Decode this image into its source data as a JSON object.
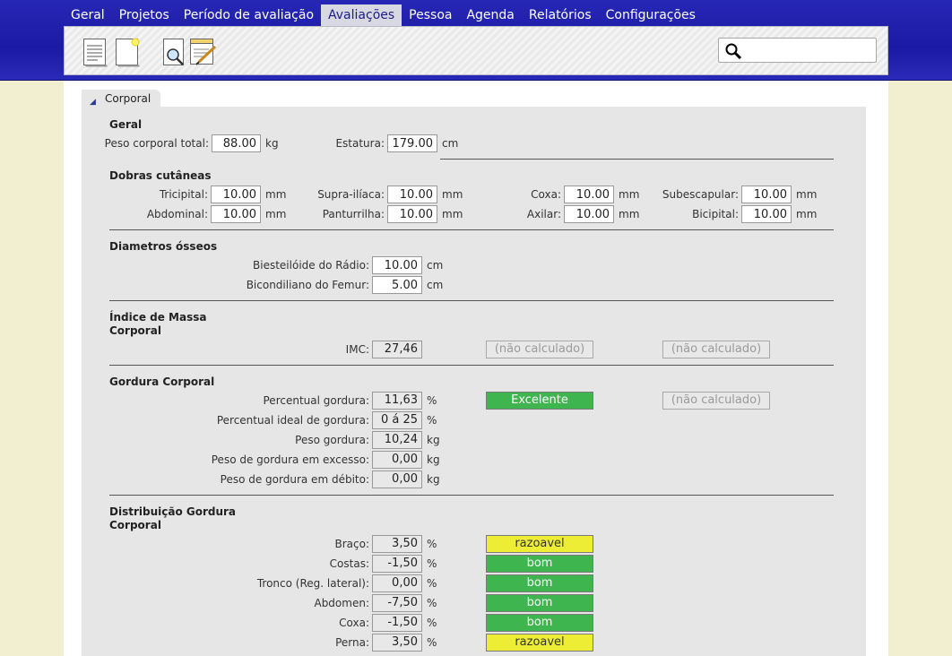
{
  "nav": [
    "Geral",
    "Projetos",
    "Período de avaliação",
    "Avaliações",
    "Pessoa",
    "Agenda",
    "Relatórios",
    "Configurações"
  ],
  "toolbar": {
    "icons": [
      "document-icon",
      "new-document-icon",
      "search-document-icon",
      "edit-notepad-icon"
    ],
    "search_placeholder": ""
  },
  "tab_label": "Corporal",
  "geral": {
    "title": "Geral",
    "peso_label": "Peso corporal total:",
    "peso_value": "88.00",
    "peso_unit": "kg",
    "estatura_label": "Estatura:",
    "estatura_value": "179.00",
    "estatura_unit": "cm"
  },
  "dobras": {
    "title": "Dobras cutâneas",
    "unit": "mm",
    "fields": [
      {
        "label": "Tricipital:",
        "value": "10.00"
      },
      {
        "label": "Supra-ilíaca:",
        "value": "10.00"
      },
      {
        "label": "Coxa:",
        "value": "10.00"
      },
      {
        "label": "Subescapular:",
        "value": "10.00"
      },
      {
        "label": "Abdominal:",
        "value": "10.00"
      },
      {
        "label": "Panturrilha:",
        "value": "10.00"
      },
      {
        "label": "Axilar:",
        "value": "10.00"
      },
      {
        "label": "Bicipital:",
        "value": "10.00"
      }
    ]
  },
  "diametros": {
    "title": "Diametros ósseos",
    "unit": "cm",
    "fields": [
      {
        "label": "Biesteilóide do Rádio:",
        "value": "10.00"
      },
      {
        "label": "Bicondiliano do Femur:",
        "value": "5.00"
      }
    ]
  },
  "imc": {
    "title_line1": "Índice de Massa",
    "title_line2": "Corporal",
    "label": "IMC:",
    "value": "27,46",
    "status1": "(não calculado)",
    "status2": "(não calculado)"
  },
  "gordura": {
    "title": "Gordura Corporal",
    "fields": [
      {
        "label": "Percentual gordura:",
        "value": "11,63",
        "unit": "%"
      },
      {
        "label": "Percentual ideal de gordura:",
        "value": "0 á 25",
        "unit": "%"
      },
      {
        "label": "Peso gordura:",
        "value": "10,24",
        "unit": "kg"
      },
      {
        "label": "Peso de gordura em excesso:",
        "value": "0,00",
        "unit": "kg"
      },
      {
        "label": "Peso de gordura em débito:",
        "value": "0,00",
        "unit": "kg"
      }
    ],
    "badge": "Excelente",
    "badge_color": "#3fb54f",
    "status2": "(não calculado)"
  },
  "distribuicao": {
    "title_line1": "Distribuição Gordura",
    "title_line2": "Corporal",
    "unit": "%",
    "good_color": "#3fb54f",
    "fair_color": "#eded36",
    "rows": [
      {
        "label": "Braço:",
        "value": "3,50",
        "badge": "razoavel"
      },
      {
        "label": "Costas:",
        "value": "-1,50",
        "badge": "bom"
      },
      {
        "label": "Tronco (Reg. lateral):",
        "value": "0,00",
        "badge": "bom"
      },
      {
        "label": "Abdomen:",
        "value": "-7,50",
        "badge": "bom"
      },
      {
        "label": "Coxa:",
        "value": "-1,50",
        "badge": "bom"
      },
      {
        "label": "Perna:",
        "value": "3,50",
        "badge": "razoavel"
      }
    ]
  }
}
